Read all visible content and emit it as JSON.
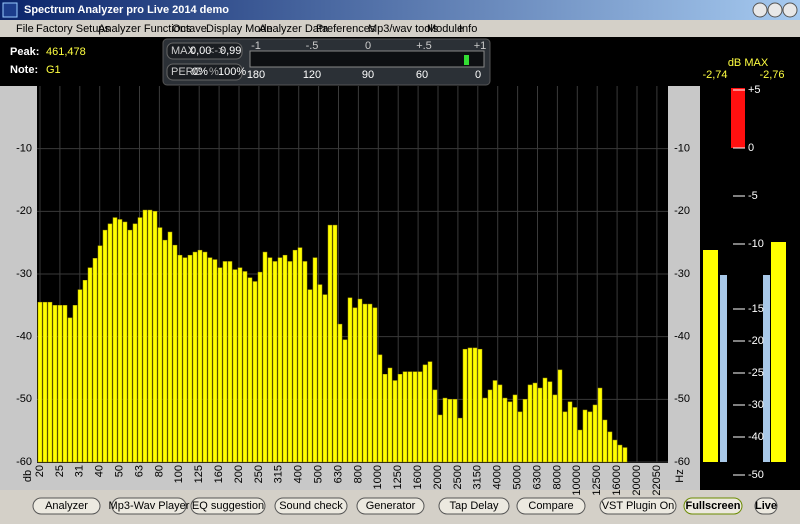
{
  "window": {
    "title": "Spectrum Analyzer pro Live 2014 demo"
  },
  "menu": [
    "File",
    "Factory Setups",
    "Analyzer Functions",
    "Octave",
    "Display Mode",
    "Analyzer Data",
    "Preferences",
    "Mp3/wav tools",
    "Module",
    "Info"
  ],
  "peak": {
    "label": "Peak:",
    "value": "461,478"
  },
  "note": {
    "label": "Note:",
    "value": "G1"
  },
  "control": {
    "max_label": "MAX",
    "max_from": "0,00",
    "max_sep": "<->",
    "max_to": "0,99",
    "perc_label": "PERC",
    "perc_from": "0%",
    "perc_sep": "%",
    "perc_to": "100%",
    "top_scale": [
      "-1",
      "-.5",
      "0",
      "+.5",
      "+1"
    ],
    "bottom_scale": [
      "180",
      "120",
      "90",
      "60",
      "0"
    ]
  },
  "meter": {
    "title": "dB MAX",
    "left": "-2,74",
    "right": "-2,76",
    "scale": [
      "+5",
      "0",
      "-5",
      "-10",
      "-15",
      "-20",
      "-25",
      "-30",
      "-40",
      "-50"
    ]
  },
  "chart_data": {
    "type": "bar",
    "color": "#ffff00",
    "ylim": [
      -60,
      0
    ],
    "yticks": [
      -10,
      -20,
      -30,
      -40,
      -50,
      -60
    ],
    "y_unit": "db",
    "x_unit": "Hz",
    "x_labels": [
      "20",
      "25",
      "31",
      "40",
      "50",
      "63",
      "80",
      "100",
      "125",
      "160",
      "200",
      "250",
      "315",
      "400",
      "500",
      "630",
      "800",
      "1000",
      "1250",
      "1600",
      "2000",
      "2500",
      "3150",
      "4000",
      "5000",
      "6300",
      "8000",
      "10000",
      "12500",
      "16000",
      "20000",
      "22050"
    ],
    "values": [
      -34.5,
      -34.5,
      -34.5,
      -35,
      -35,
      -35,
      -37,
      -35,
      -32.5,
      -31,
      -29,
      -27.5,
      -25.5,
      -23,
      -22,
      -21,
      -21.3,
      -21.7,
      -23,
      -22,
      -21,
      -19.8,
      -19.8,
      -20,
      -22.6,
      -24.6,
      -23.3,
      -25.4,
      -27,
      -27.4,
      -27,
      -26.5,
      -26.2,
      -26.5,
      -27.4,
      -27.7,
      -29,
      -28,
      -28,
      -29.3,
      -29,
      -29.6,
      -30.6,
      -31.2,
      -29.7,
      -26.5,
      -27.4,
      -28,
      -27.4,
      -27,
      -28,
      -26.2,
      -25.8,
      -28,
      -32.5,
      -27.4,
      -31.7,
      -33.3,
      -22.2,
      -22.2,
      -38,
      -40.5,
      -33.8,
      -35.4,
      -34,
      -34.8,
      -34.8,
      -35.4,
      -42.9,
      -46,
      -45,
      -47,
      -46,
      -45.6,
      -45.6,
      -45.6,
      -45.6,
      -44.5,
      -44,
      -48.5,
      -52.5,
      -49.8,
      -50,
      -50,
      -53,
      -42,
      -41.8,
      -41.8,
      -42,
      -49.8,
      -48.5,
      -47,
      -47.7,
      -49.8,
      -50.4,
      -49.3,
      -52,
      -50,
      -47.7,
      -47.4,
      -48.2,
      -46.6,
      -47.2,
      -49.3,
      -45.3,
      -52,
      -50.4,
      -51.3,
      -54.9,
      -51.7,
      -52,
      -50.9,
      -48.2,
      -53.3,
      -55.2,
      -56.5,
      -57.3,
      -57.7
    ]
  },
  "buttons": [
    "Analyzer",
    "Mp3-Wav Player",
    "EQ suggestion",
    "Sound check",
    "Generator",
    "Tap Delay",
    "Compare",
    "VST Plugin On",
    "Fullscreen",
    "Live"
  ]
}
